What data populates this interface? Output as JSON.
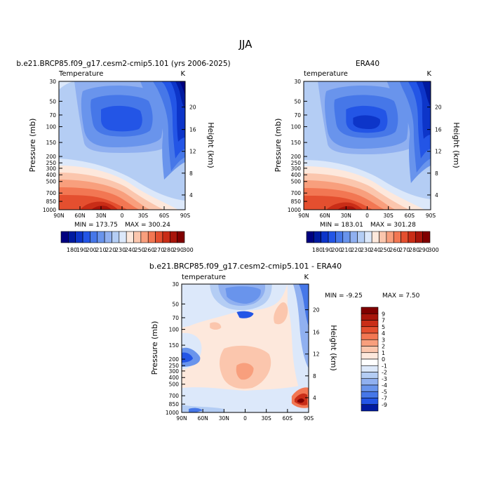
{
  "figure": {
    "title": "JJA"
  },
  "chart_data": [
    {
      "type": "heatmap",
      "title": "b.e21.BRCP85.f09_g17.cesm2-cmip5.101 (yrs 2006-2025)",
      "left_label": "Temperature",
      "right_label": "K",
      "ylabel": "Pressure (mb)",
      "ylabel_right": "Height (km)",
      "x_ticks": [
        "90N",
        "60N",
        "30N",
        "0",
        "30S",
        "60S",
        "90S"
      ],
      "y_ticks": [
        "30",
        "50",
        "70",
        "100",
        "150",
        "200",
        "250",
        "300",
        "400",
        "500",
        "700",
        "850",
        "1000"
      ],
      "y_ticks_right": [
        "20",
        "16",
        "12",
        "8",
        "4"
      ],
      "min_label": "MIN = 173.75",
      "max_label": "MAX = 300.24",
      "colorbar_labels": [
        "180",
        "190",
        "200",
        "210",
        "220",
        "230",
        "240",
        "250",
        "260",
        "270",
        "280",
        "290",
        "300"
      ]
    },
    {
      "type": "heatmap",
      "title": "ERA40",
      "left_label": "temperature",
      "right_label": "K",
      "ylabel": "Pressure (mb)",
      "ylabel_right": "Height (km)",
      "x_ticks": [
        "90N",
        "60N",
        "30N",
        "0",
        "30S",
        "60S",
        "90S"
      ],
      "y_ticks": [
        "30",
        "50",
        "70",
        "100",
        "150",
        "200",
        "250",
        "300",
        "400",
        "500",
        "700",
        "850",
        "1000"
      ],
      "y_ticks_right": [
        "20",
        "16",
        "12",
        "8",
        "4"
      ],
      "min_label": "MIN = 183.01",
      "max_label": "MAX = 301.28",
      "colorbar_labels": [
        "180",
        "190",
        "200",
        "210",
        "220",
        "230",
        "240",
        "250",
        "260",
        "270",
        "280",
        "290",
        "300"
      ]
    },
    {
      "type": "heatmap",
      "title": "b.e21.BRCP85.f09_g17.cesm2-cmip5.101 - ERA40",
      "left_label": "temperature",
      "right_label": "K",
      "ylabel": "Pressure (mb)",
      "ylabel_right": "Height (km)",
      "x_ticks": [
        "90N",
        "60N",
        "30N",
        "0",
        "30S",
        "60S",
        "90S"
      ],
      "y_ticks": [
        "30",
        "50",
        "70",
        "100",
        "150",
        "200",
        "250",
        "300",
        "400",
        "500",
        "700",
        "850",
        "1000"
      ],
      "y_ticks_right": [
        "20",
        "16",
        "12",
        "8",
        "4"
      ],
      "min_label": "MIN =   -9.25",
      "max_label": "MAX =    7.50",
      "colorbar_labels": [
        "9",
        "7",
        "5",
        "4",
        "3",
        "2",
        "1",
        "0",
        "-1",
        "-2",
        "-3",
        "-4",
        "-5",
        "-7",
        "-9"
      ]
    }
  ],
  "palettes": {
    "absolute": [
      "#00007f",
      "#001aa0",
      "#0d35c9",
      "#2355e6",
      "#4677e8",
      "#6994ec",
      "#90b0f0",
      "#b4cdf4",
      "#dce8fa",
      "#fde8dc",
      "#fbc6ad",
      "#f89f7d",
      "#f27753",
      "#e44f2f",
      "#c92d17",
      "#a8150b",
      "#800000"
    ],
    "difference": [
      "#800000",
      "#a8150b",
      "#c92d17",
      "#e44f2f",
      "#f27753",
      "#f89f7d",
      "#fbc6ad",
      "#fde8dc",
      "#ffffff",
      "#dce8fa",
      "#b4cdf4",
      "#90b0f0",
      "#6994ec",
      "#4677e8",
      "#2355e6",
      "#001aa0"
    ]
  }
}
